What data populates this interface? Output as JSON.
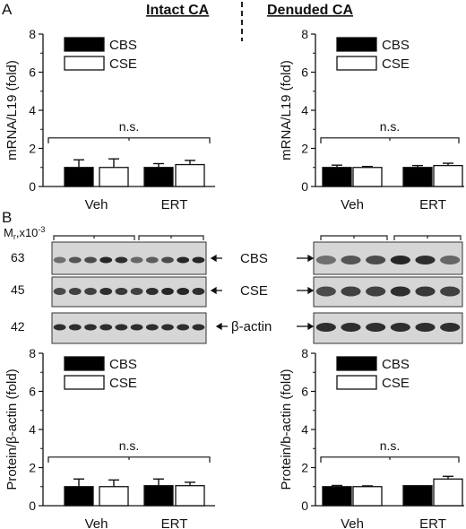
{
  "panel_labels": {
    "a": "A",
    "b": "B"
  },
  "headings": {
    "intact": "Intact CA",
    "denuded": "Denuded CA"
  },
  "colors": {
    "cbs": "#000000",
    "cse": "#ffffff",
    "divider": "#222222",
    "blot_bg": "#d6d6d6",
    "band": "#1c1c1c"
  },
  "blot": {
    "mr_label": "M",
    "mr_sub": "r",
    "mr_rest": ",x10",
    "mr_exp": "-3",
    "markers": [
      "63",
      "45",
      "42"
    ],
    "band_labels": [
      "CBS",
      "CSE",
      "β-actin"
    ]
  },
  "chart_data": [
    {
      "type": "bar",
      "panel": "A-left",
      "categories": [
        "Veh",
        "ERT"
      ],
      "series": [
        {
          "name": "CBS",
          "values": [
            1.0,
            1.0
          ],
          "errors": [
            0.4,
            0.2
          ]
        },
        {
          "name": "CSE",
          "values": [
            1.0,
            1.15
          ],
          "errors": [
            0.45,
            0.22
          ]
        }
      ],
      "ylabel": "mRNA/L19 (fold)",
      "ylim": [
        0,
        8
      ],
      "yticks": [
        "0",
        "2",
        "4",
        "6",
        "8"
      ],
      "annotation": "n.s.",
      "legend": "top-left"
    },
    {
      "type": "bar",
      "panel": "A-right",
      "categories": [
        "Veh",
        "ERT"
      ],
      "series": [
        {
          "name": "CBS",
          "values": [
            1.0,
            1.0
          ],
          "errors": [
            0.12,
            0.1
          ]
        },
        {
          "name": "CSE",
          "values": [
            1.0,
            1.1
          ],
          "errors": [
            0.05,
            0.12
          ]
        }
      ],
      "ylabel": "mRNA/L19 (fold)",
      "ylim": [
        0,
        8
      ],
      "yticks": [
        "0",
        "2",
        "4",
        "6",
        "8"
      ],
      "annotation": "n.s.",
      "legend": "top-left"
    },
    {
      "type": "bar",
      "panel": "B-left",
      "categories": [
        "Veh",
        "ERT"
      ],
      "series": [
        {
          "name": "CBS",
          "values": [
            1.0,
            1.05
          ],
          "errors": [
            0.4,
            0.35
          ]
        },
        {
          "name": "CSE",
          "values": [
            1.0,
            1.05
          ],
          "errors": [
            0.35,
            0.18
          ]
        }
      ],
      "ylabel": "Protein/β-actin (fold)",
      "ylim": [
        0,
        8
      ],
      "yticks": [
        "0",
        "2",
        "4",
        "6",
        "8"
      ],
      "annotation": "n.s.",
      "legend": "top-left"
    },
    {
      "type": "bar",
      "panel": "B-right",
      "categories": [
        "Veh",
        "ERT"
      ],
      "series": [
        {
          "name": "CBS",
          "values": [
            1.0,
            1.05
          ],
          "errors": [
            0.06,
            0.0
          ]
        },
        {
          "name": "CSE",
          "values": [
            1.0,
            1.4
          ],
          "errors": [
            0.04,
            0.14
          ]
        }
      ],
      "ylabel": "Protein/b-actin (fold)",
      "ylim": [
        0,
        8
      ],
      "yticks": [
        "0",
        "2",
        "4",
        "6",
        "8"
      ],
      "annotation": "n.s.",
      "legend": "top-left"
    }
  ]
}
